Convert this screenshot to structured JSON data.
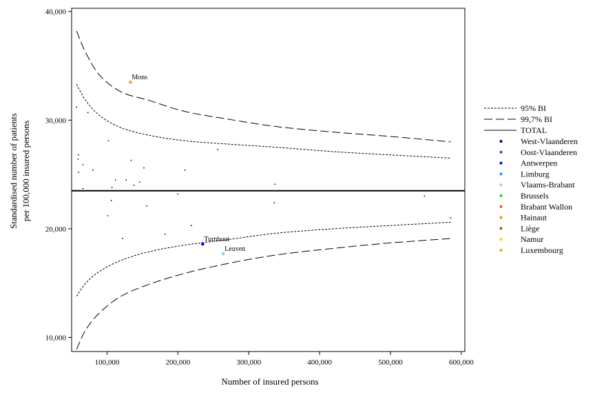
{
  "chart_data": {
    "type": "scatter",
    "title": "",
    "xlabel": "Number of insured persons",
    "ylabel_line1": "Standardised number of patients",
    "ylabel_line2": "per 100,000 insured persons",
    "xlim": [
      50000,
      605000
    ],
    "ylim": [
      8700,
      40300
    ],
    "x_ticks": [
      100000,
      200000,
      300000,
      400000,
      500000,
      600000
    ],
    "x_tick_labels": [
      "100,000",
      "200,000",
      "300,000",
      "400,000",
      "500,000",
      "600,000"
    ],
    "y_ticks": [
      10000,
      20000,
      30000,
      40000
    ],
    "y_tick_labels": [
      "10,000",
      "20,000",
      "30,000",
      "40,000"
    ],
    "grid": false,
    "legend_position": "right",
    "total_value": 23500,
    "lines": [
      {
        "name": "95% BI",
        "style": "dotted",
        "x": [
          57000,
          70000,
          90000,
          120000,
          160000,
          210000,
          270000,
          340000,
          420000,
          500000,
          585000
        ],
        "upper": [
          33300,
          31800,
          30400,
          29300,
          28600,
          28100,
          27800,
          27500,
          27100,
          26800,
          26500
        ],
        "lower": [
          13800,
          15000,
          16100,
          17100,
          17900,
          18500,
          19000,
          19600,
          20000,
          20300,
          20600
        ]
      },
      {
        "name": "99,7% BI",
        "style": "dashed",
        "x": [
          57000,
          70000,
          90000,
          120000,
          160000,
          210000,
          270000,
          340000,
          420000,
          500000,
          585000
        ],
        "upper": [
          38200,
          36200,
          34100,
          32600,
          31800,
          30800,
          30100,
          29400,
          28900,
          28500,
          28000
        ],
        "lower": [
          8900,
          10700,
          12300,
          13800,
          14900,
          15900,
          16800,
          17600,
          18200,
          18700,
          19100
        ]
      },
      {
        "name": "TOTAL",
        "style": "solid"
      }
    ],
    "legend_regions": [
      {
        "name": "West-Vlaanderen",
        "color": "#00008b"
      },
      {
        "name": "Oost-Vlaanderen",
        "color": "#1e50c8"
      },
      {
        "name": "Antwerpen",
        "color": "#0000ee"
      },
      {
        "name": "Limburg",
        "color": "#1e90ff"
      },
      {
        "name": "Vlaams-Brabant",
        "color": "#87cefa"
      },
      {
        "name": "Brussels",
        "color": "#32cd32"
      },
      {
        "name": "Brabant Wallon",
        "color": "#e2581c"
      },
      {
        "name": "Hainaut",
        "color": "#ff8c00"
      },
      {
        "name": "Liège",
        "color": "#a0522d"
      },
      {
        "name": "Namur",
        "color": "#ffd700"
      },
      {
        "name": "Luxembourg",
        "color": "#f4a020"
      }
    ],
    "points": [
      {
        "x": 57000,
        "y": 31200,
        "color": "#000000",
        "label": ""
      },
      {
        "x": 60000,
        "y": 26800,
        "color": "#000000",
        "label": ""
      },
      {
        "x": 59000,
        "y": 26400,
        "color": "#000000",
        "label": ""
      },
      {
        "x": 60000,
        "y": 25200,
        "color": "#000000",
        "label": ""
      },
      {
        "x": 66000,
        "y": 25900,
        "color": "#000000",
        "label": ""
      },
      {
        "x": 66000,
        "y": 23700,
        "color": "#000000",
        "label": ""
      },
      {
        "x": 73000,
        "y": 30700,
        "color": "#000000",
        "label": ""
      },
      {
        "x": 80000,
        "y": 25400,
        "color": "#000000",
        "label": ""
      },
      {
        "x": 102000,
        "y": 28100,
        "color": "#000000",
        "label": ""
      },
      {
        "x": 101000,
        "y": 21200,
        "color": "#000000",
        "label": ""
      },
      {
        "x": 106000,
        "y": 22600,
        "color": "#000000",
        "label": ""
      },
      {
        "x": 107000,
        "y": 23800,
        "color": "#000000",
        "label": ""
      },
      {
        "x": 112000,
        "y": 24500,
        "color": "#000000",
        "label": ""
      },
      {
        "x": 122000,
        "y": 19100,
        "color": "#000000",
        "label": ""
      },
      {
        "x": 127000,
        "y": 24500,
        "color": "#000000",
        "label": ""
      },
      {
        "x": 133000,
        "y": 33500,
        "color": "#f4a020",
        "label": "Mons"
      },
      {
        "x": 134000,
        "y": 26300,
        "color": "#000000",
        "label": ""
      },
      {
        "x": 138000,
        "y": 24000,
        "color": "#000000",
        "label": ""
      },
      {
        "x": 146000,
        "y": 24300,
        "color": "#000000",
        "label": ""
      },
      {
        "x": 152000,
        "y": 25600,
        "color": "#000000",
        "label": ""
      },
      {
        "x": 156000,
        "y": 22100,
        "color": "#000000",
        "label": ""
      },
      {
        "x": 182000,
        "y": 19500,
        "color": "#000000",
        "label": ""
      },
      {
        "x": 200000,
        "y": 23200,
        "color": "#000000",
        "label": ""
      },
      {
        "x": 210000,
        "y": 25400,
        "color": "#000000",
        "label": ""
      },
      {
        "x": 219000,
        "y": 20300,
        "color": "#000000",
        "label": ""
      },
      {
        "x": 235000,
        "y": 18600,
        "color": "#0000ee",
        "label": "Turnhout"
      },
      {
        "x": 256000,
        "y": 27300,
        "color": "#000000",
        "label": ""
      },
      {
        "x": 264000,
        "y": 17700,
        "color": "#87cefa",
        "label": "Leuven"
      },
      {
        "x": 336000,
        "y": 22400,
        "color": "#000000",
        "label": ""
      },
      {
        "x": 337000,
        "y": 24100,
        "color": "#000000",
        "label": ""
      },
      {
        "x": 548000,
        "y": 23000,
        "color": "#000000",
        "label": ""
      },
      {
        "x": 585000,
        "y": 21000,
        "color": "#000000",
        "label": ""
      }
    ]
  }
}
